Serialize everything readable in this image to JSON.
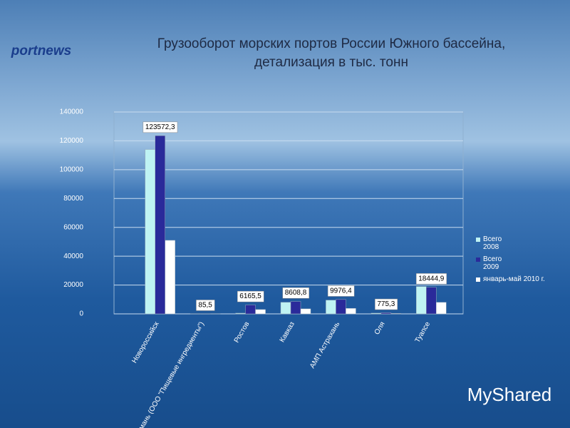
{
  "logo": "portnews",
  "watermark": "MyShared",
  "chart_data": {
    "type": "bar",
    "title": [
      "Грузооборот морских портов России Южного бассейна,",
      "детализация в тыс. тонн"
    ],
    "categories": [
      "Новороссийск",
      "Тамань (ООО \"Пищевые ингредиенты\")",
      "Ростов",
      "Кавказ",
      "АМП Астрахань",
      "Оля",
      "Туапсе"
    ],
    "series": [
      {
        "name": "Всего 2008",
        "color": "#bff3f3",
        "values": [
          114000,
          100,
          500,
          8000,
          9500,
          500,
          19000
        ]
      },
      {
        "name": "Всего 2009",
        "color": "#2a2a9a",
        "values": [
          123572.3,
          85.5,
          6165.5,
          8608.8,
          9976.4,
          775.3,
          18444.9
        ],
        "value_labels": [
          "123572,3",
          "85,5",
          "6165,5",
          "8608,8",
          "9976,4",
          "775,3",
          "18444,9"
        ]
      },
      {
        "name": "январь-май 2010 г.",
        "color": "#ffffff",
        "values": [
          51000,
          50,
          3000,
          3500,
          3800,
          300,
          8000
        ]
      }
    ],
    "ylim": [
      0,
      140000
    ],
    "yticks": [
      0,
      20000,
      40000,
      60000,
      80000,
      100000,
      120000,
      140000
    ],
    "grid": true
  }
}
